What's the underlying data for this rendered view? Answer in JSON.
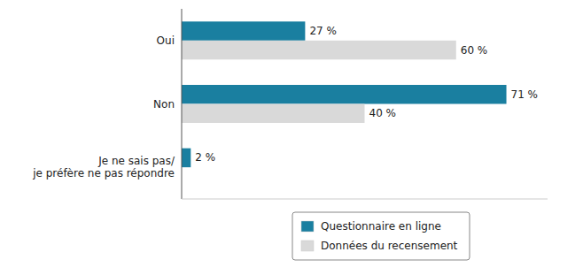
{
  "chart_data": {
    "type": "bar",
    "orientation": "horizontal",
    "categories": [
      "Je ne sais pas/\nje préfère ne pas répondre",
      "Non",
      "Oui"
    ],
    "series": [
      {
        "name": "Questionnaire en ligne",
        "color": "#1a7fa0",
        "values": [
          2,
          71,
          27
        ],
        "value_labels": [
          "2 %",
          "71 %",
          "27 %"
        ]
      },
      {
        "name": "Données du recensement",
        "color": "#d9d9d9",
        "values": [
          0,
          40,
          60
        ],
        "value_labels": [
          null,
          "40 %",
          "60 %"
        ]
      }
    ],
    "xlim": [
      0,
      80
    ],
    "grid": false,
    "legend": "bottom",
    "data_labels": true,
    "tick_labels": "y"
  }
}
